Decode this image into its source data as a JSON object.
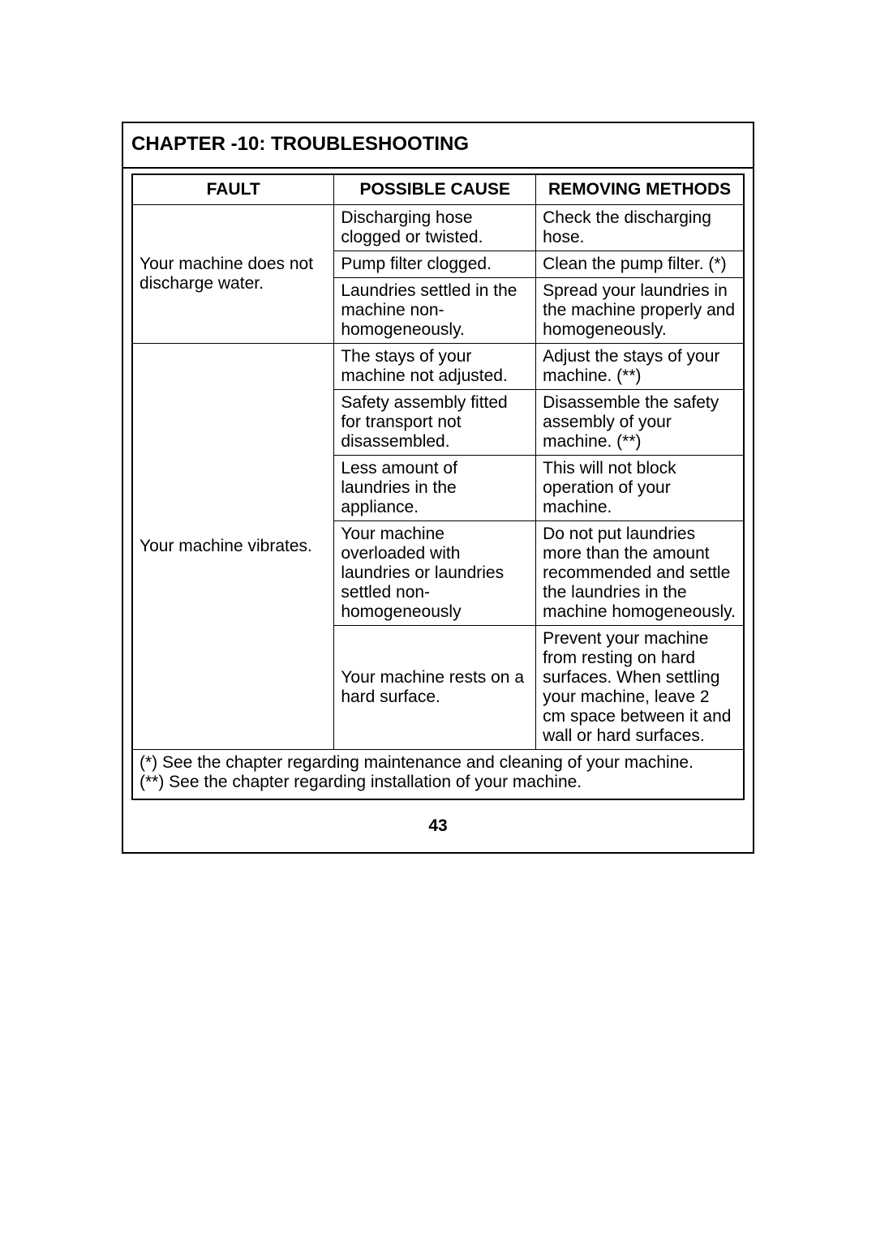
{
  "chapter_title": "CHAPTER -10: TROUBLESHOOTING",
  "headers": {
    "fault": "FAULT",
    "cause": "POSSIBLE CAUSE",
    "method": "REMOVING METHODS"
  },
  "fault1": {
    "label": "Your machine does not discharge water.",
    "r1": {
      "cause": "Discharging hose clogged or twisted.",
      "method": "Check the discharging hose."
    },
    "r2": {
      "cause": "Pump filter clogged.",
      "method": "Clean the pump filter. (*)"
    },
    "r3": {
      "cause": "Laundries settled in the machine non-homogeneously.",
      "method": "Spread your laundries in the machine properly and homogeneously."
    }
  },
  "fault2": {
    "label": "Your machine vibrates.",
    "r1": {
      "cause": "The stays of your machine not adjusted.",
      "method": "Adjust the stays of your machine. (**)"
    },
    "r2": {
      "cause": "Safety assembly fitted for transport not disassembled.",
      "method": "Disassemble the safety assembly of your machine. (**)"
    },
    "r3": {
      "cause": "Less amount of laundries in the appliance.",
      "method": "This will not block operation of your machine."
    },
    "r4": {
      "cause": "Your machine overloaded with laundries or laundries settled non-homogeneously",
      "method": "Do not put laundries more than the amount recommended and settle the laundries in the machine homogeneously."
    },
    "r5": {
      "cause": "Your machine rests on a hard surface.",
      "method": "Prevent your machine from resting on hard surfaces. When settling your machine, leave 2 cm space between it and wall or hard surfaces."
    }
  },
  "footnote1": "(*) See the chapter regarding maintenance and cleaning of your machine.",
  "footnote2": "(**) See the chapter regarding installation of your machine.",
  "page_number": "43"
}
